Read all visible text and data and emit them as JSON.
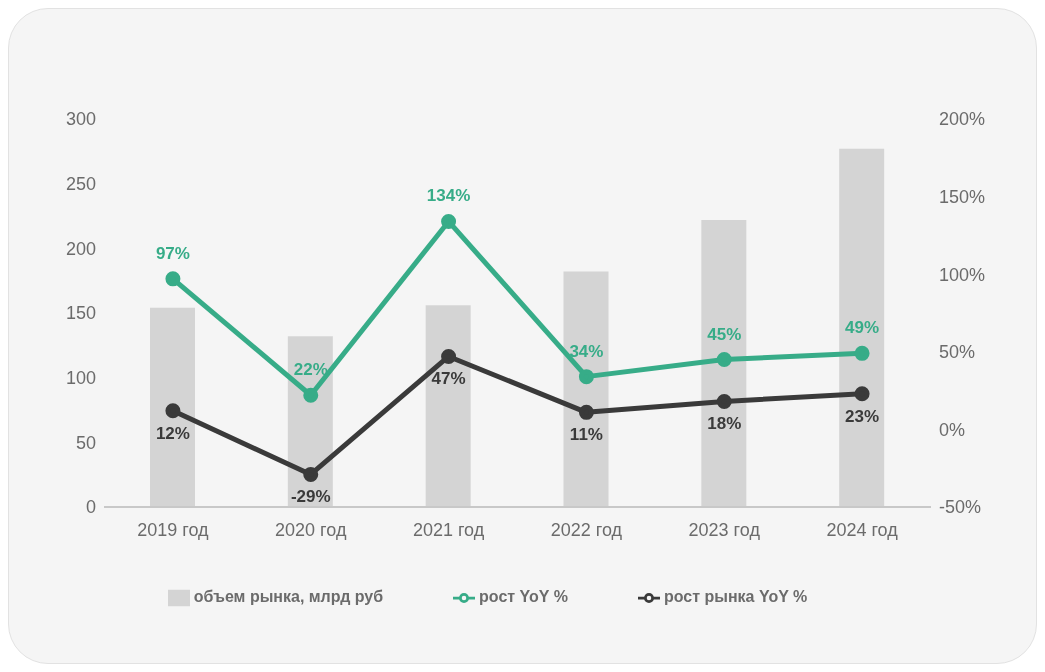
{
  "chart_data": {
    "type": "bar",
    "categories": [
      "2019 год",
      "2020 год",
      "2021 год",
      "2022 год",
      "2023 год",
      "2024 год"
    ],
    "series": [
      {
        "name": "объем рынка, млрд руб",
        "color": "#d4d4d4",
        "values": [
          154,
          132,
          156,
          182,
          222,
          277
        ]
      },
      {
        "name": "рост рынка YoY %",
        "type": "line",
        "axis": "y2",
        "color": "#3a3a3a",
        "values": [
          12,
          -29,
          47,
          11,
          18,
          23
        ],
        "value_labels": [
          "12%",
          "-29%",
          "47%",
          "11%",
          "18%",
          "23%"
        ]
      },
      {
        "name": "рост YoY %",
        "type": "line",
        "axis": "y2",
        "color": "#37ac88",
        "values": [
          97,
          22,
          134,
          34,
          45,
          49
        ],
        "value_labels": [
          "97%",
          "22%",
          "134%",
          "34%",
          "45%",
          "49%"
        ]
      }
    ],
    "ylim": [
      0,
      300
    ],
    "yticks": [
      0,
      50,
      100,
      150,
      200,
      250,
      300
    ],
    "y2lim": [
      -50,
      200
    ],
    "y2ticks": [
      {
        "value": -50,
        "label": "-50%"
      },
      {
        "value": 0,
        "label": "0%"
      },
      {
        "value": 50,
        "label": "50%"
      },
      {
        "value": 100,
        "label": "100%"
      },
      {
        "value": 150,
        "label": "150%"
      },
      {
        "value": 200,
        "label": "200%"
      }
    ],
    "legend": "bottom",
    "marker": "circle",
    "line_style": "solid",
    "grid": false
  }
}
